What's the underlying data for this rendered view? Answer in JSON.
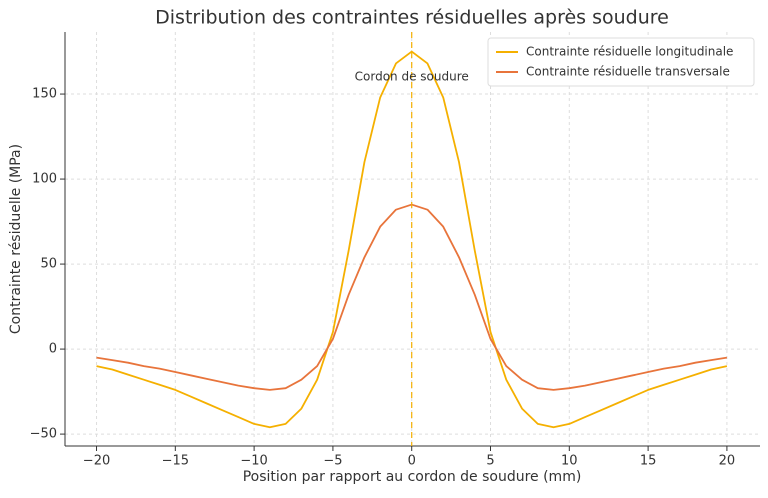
{
  "chart_data": {
    "type": "line",
    "title": "Distribution des contraintes résiduelles après soudure",
    "x_label": "Position par rapport au cordon de soudure (mm)",
    "y_label": "Contrainte résiduelle (MPa)",
    "x": [
      -20,
      -19,
      -18,
      -17,
      -16,
      -15,
      -14,
      -13,
      -12,
      -11,
      -10,
      -9,
      -8,
      -7,
      -6,
      -5,
      -4,
      -3,
      -2,
      -1,
      0,
      1,
      2,
      3,
      4,
      5,
      6,
      7,
      8,
      9,
      10,
      11,
      12,
      13,
      14,
      15,
      16,
      17,
      18,
      19,
      20
    ],
    "series": [
      {
        "name": "Contrainte résiduelle longitudinale",
        "color": "#f5b000",
        "values": [
          -10,
          -12,
          -15,
          -18,
          -21,
          -24,
          -28,
          -32,
          -36,
          -40,
          -44,
          -46,
          -44,
          -35,
          -18,
          10,
          58,
          110,
          148,
          168,
          175,
          168,
          148,
          110,
          58,
          10,
          -18,
          -35,
          -44,
          -46,
          -44,
          -40,
          -36,
          -32,
          -28,
          -24,
          -21,
          -18,
          -15,
          -12,
          -10
        ]
      },
      {
        "name": "Contrainte résiduelle transversale",
        "color": "#e8743b",
        "values": [
          -5,
          -6.5,
          -8,
          -10,
          -11.5,
          -13.5,
          -15.5,
          -17.5,
          -19.5,
          -21.5,
          -23,
          -24,
          -23,
          -18,
          -10,
          6,
          32,
          54,
          72,
          82,
          85,
          82,
          72,
          54,
          32,
          6,
          -10,
          -18,
          -23,
          -24,
          -23,
          -21.5,
          -19.5,
          -17.5,
          -15.5,
          -13.5,
          -11.5,
          -10,
          -8,
          -6.5,
          -5
        ]
      }
    ],
    "vline": {
      "x": 0,
      "color": "#f5b000"
    },
    "annotation": {
      "text": "Cordon de soudure",
      "x": 0,
      "y": 160
    },
    "xlim": [
      -22,
      22.1
    ],
    "ylim": [
      -57,
      186.5
    ],
    "xticks": [
      {
        "value": -20,
        "label": "−20"
      },
      {
        "value": -15,
        "label": "−15"
      },
      {
        "value": -10,
        "label": "−10"
      },
      {
        "value": -5,
        "label": "−5"
      },
      0,
      5,
      10,
      15,
      20
    ],
    "yticks": [
      {
        "value": -50,
        "label": "−50"
      },
      0,
      50,
      100,
      150
    ],
    "grid": true,
    "legend": "upper right"
  }
}
